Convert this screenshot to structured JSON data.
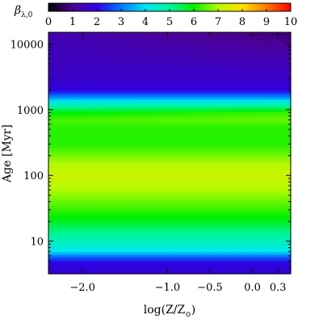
{
  "chart_data": {
    "type": "heatmap",
    "title": "",
    "xlabel": "log(Z/Z⊙)",
    "ylabel": "Age [Myr]",
    "x_scale": "linear",
    "y_scale": "log",
    "xlim": [
      -2.4,
      0.45
    ],
    "ylim": [
      3.2,
      15000
    ],
    "x_ticks": [
      {
        "value": -2.0,
        "label": "−2.0"
      },
      {
        "value": -1.0,
        "label": "−1.0"
      },
      {
        "value": -0.5,
        "label": "−0.5"
      },
      {
        "value": 0.0,
        "label": "0.0"
      },
      {
        "value": 0.3,
        "label": "0.3"
      }
    ],
    "y_ticks": [
      {
        "value": 10,
        "label": "10"
      },
      {
        "value": 100,
        "label": "100"
      },
      {
        "value": 1000,
        "label": "1000"
      },
      {
        "value": 10000,
        "label": "10000"
      }
    ],
    "colorbar": {
      "label": "β",
      "label_subscript": "λ,0",
      "range": [
        0,
        10
      ],
      "ticks": [
        "0",
        "1",
        "2",
        "3",
        "4",
        "5",
        "6",
        "7",
        "8",
        "9",
        "10"
      ],
      "colormap": "rainbow",
      "position": "top"
    },
    "age_profile": [
      {
        "age": 3.2,
        "beta": 1.8
      },
      {
        "age": 4.5,
        "beta": 1.9
      },
      {
        "age": 5.5,
        "beta": 2.6
      },
      {
        "age": 7,
        "beta": 4.0
      },
      {
        "age": 10,
        "beta": 4.7
      },
      {
        "age": 15,
        "beta": 5.3
      },
      {
        "age": 20,
        "beta": 5.8
      },
      {
        "age": 30,
        "beta": 6.3
      },
      {
        "age": 50,
        "beta": 6.8
      },
      {
        "age": 70,
        "beta": 7.1
      },
      {
        "age": 100,
        "beta": 7.3
      },
      {
        "age": 150,
        "beta": 7.0
      },
      {
        "age": 220,
        "beta": 6.5
      },
      {
        "age": 300,
        "beta": 6.2
      },
      {
        "age": 500,
        "beta": 6.2
      },
      {
        "age": 700,
        "beta": 6.4
      },
      {
        "age": 900,
        "beta": 5.9
      },
      {
        "age": 1200,
        "beta": 4.6
      },
      {
        "age": 1600,
        "beta": 3.0
      },
      {
        "age": 2000,
        "beta": 1.9
      },
      {
        "age": 3000,
        "beta": 1.6
      },
      {
        "age": 5000,
        "beta": 1.5
      },
      {
        "age": 10000,
        "beta": 1.4
      },
      {
        "age": 15000,
        "beta": 1.3
      }
    ],
    "metallicity_trend": "older ages: beta decreases toward high metallicity; around 500–1000 Myr a slight increase toward high metallicity"
  }
}
